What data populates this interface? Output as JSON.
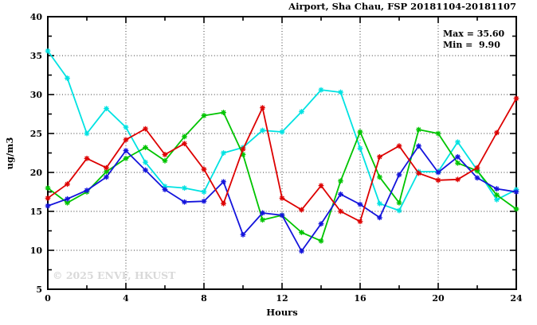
{
  "title": "Airport, Sha Chau, FSP 20181104-20181107",
  "stats": {
    "max_label": "Max = 35.60",
    "min_label": "Min =  9.90"
  },
  "watermark": "© 2025 ENVF, HKUST",
  "chart_data": {
    "type": "line",
    "title": "Airport, Sha Chau, FSP 20181104-20181107",
    "xlabel": "Hours",
    "ylabel": "ug/m3",
    "xlim": [
      0,
      24
    ],
    "ylim": [
      5,
      40
    ],
    "grid": "dotted lines at major ticks, mirrored inward ticks on all borders",
    "legend_position": "none",
    "x_major_ticks": [
      0,
      4,
      8,
      12,
      16,
      20,
      24
    ],
    "x_minor_step": 2,
    "y_major_ticks": [
      5,
      10,
      15,
      20,
      25,
      30,
      35,
      40
    ],
    "y_minor_step": 2.5,
    "x_tick_labels": [
      "0",
      "4",
      "8",
      "12",
      "16",
      "20",
      "24"
    ],
    "y_tick_labels": [
      "5",
      "10",
      "15",
      "20",
      "25",
      "30",
      "35",
      "40"
    ],
    "x": [
      0,
      1,
      2,
      3,
      4,
      5,
      6,
      7,
      8,
      9,
      10,
      11,
      12,
      13,
      14,
      15,
      16,
      17,
      18,
      19,
      20,
      21,
      22,
      23,
      24
    ],
    "annotations": {
      "max": 35.6,
      "min": 9.9
    },
    "series": [
      {
        "name": "cyan-series",
        "color": "#00e2e2",
        "values": [
          35.6,
          32.1,
          25.0,
          28.2,
          25.8,
          21.3,
          18.2,
          18.0,
          17.5,
          22.5,
          23.2,
          25.4,
          25.2,
          27.8,
          30.6,
          30.3,
          23.1,
          16.0,
          15.1,
          20.1,
          20.1,
          23.9,
          20.3,
          16.5,
          17.8
        ]
      },
      {
        "name": "green-series",
        "color": "#00c400",
        "values": [
          18.0,
          16.1,
          17.5,
          20.1,
          21.8,
          23.2,
          21.5,
          24.6,
          27.3,
          27.7,
          22.3,
          13.9,
          14.5,
          12.3,
          11.2,
          18.9,
          25.2,
          19.4,
          16.1,
          25.5,
          25.0,
          21.2,
          20.2,
          17.1,
          15.3
        ]
      },
      {
        "name": "blue-series",
        "color": "#1414dc",
        "values": [
          15.7,
          16.6,
          17.7,
          19.4,
          22.8,
          20.3,
          17.8,
          16.2,
          16.3,
          18.8,
          12.0,
          14.8,
          14.5,
          9.9,
          13.4,
          17.2,
          15.9,
          14.2,
          19.7,
          23.4,
          20.0,
          22.0,
          19.3,
          17.9,
          17.5
        ]
      },
      {
        "name": "red-series",
        "color": "#dd0000",
        "values": [
          16.7,
          18.5,
          21.8,
          20.6,
          24.2,
          25.6,
          22.3,
          23.7,
          20.4,
          16.0,
          23.0,
          28.3,
          16.7,
          15.2,
          18.3,
          15.0,
          13.7,
          22.0,
          23.4,
          19.9,
          19.0,
          19.1,
          20.6,
          25.1,
          29.5
        ]
      }
    ]
  }
}
